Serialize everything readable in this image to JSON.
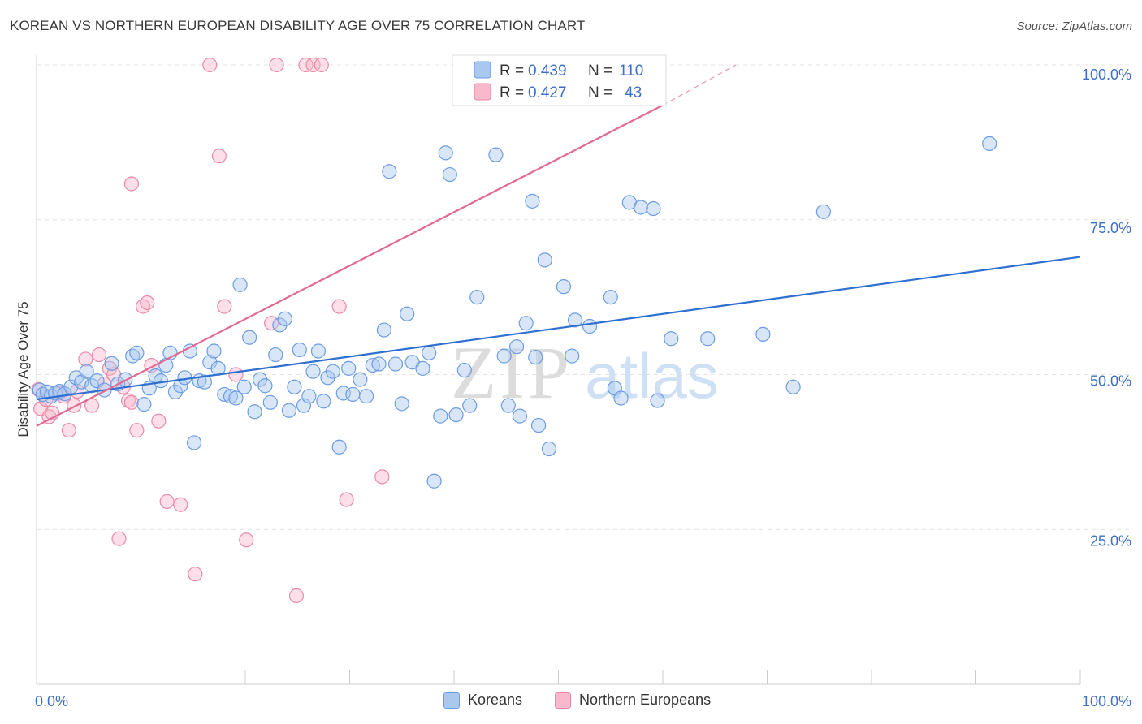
{
  "title": "KOREAN VS NORTHERN EUROPEAN DISABILITY AGE OVER 75 CORRELATION CHART",
  "source": "Source: ZipAtlas.com",
  "watermark": {
    "part1": "ZIP",
    "part2": "atlas"
  },
  "chart_data": {
    "type": "scatter",
    "title": "KOREAN VS NORTHERN EUROPEAN DISABILITY AGE OVER 75 CORRELATION CHART",
    "xlabel": "",
    "ylabel": "Disability Age Over 75",
    "xlim": [
      0,
      100
    ],
    "ylim": [
      0,
      100
    ],
    "x_tick_labels": [
      "0.0%",
      "100.0%"
    ],
    "y_tick_labels": [
      "100.0%",
      "75.0%",
      "50.0%",
      "25.0%"
    ],
    "y_ticks": [
      100,
      75,
      50,
      25
    ],
    "grid": true,
    "legend_placement": "top-center",
    "legend": [
      {
        "label_r": "R =",
        "r": "0.439",
        "label_n": "N =",
        "n": "110",
        "color": "#a9c8f0",
        "stroke": "#6c9de0"
      },
      {
        "label_r": "R =",
        "r": "0.427",
        "label_n": "N =",
        "n": "43",
        "color": "#f8b9cc",
        "stroke": "#e98aa8"
      }
    ],
    "series": [
      {
        "name": "Koreans",
        "fill": "#a9c8f0",
        "stroke": "#6c9de0",
        "line_color": "#2f6fd0",
        "trend": {
          "x0": 0,
          "y0": 46.0,
          "x1": 100,
          "y1": 69.0
        },
        "points": [
          [
            0.3,
            47.5
          ],
          [
            0.6,
            46.8
          ],
          [
            1.0,
            47.2
          ],
          [
            1.4,
            46.5
          ],
          [
            1.8,
            47.0
          ],
          [
            2.2,
            47.3
          ],
          [
            2.7,
            46.9
          ],
          [
            3.3,
            48.0
          ],
          [
            3.8,
            49.5
          ],
          [
            4.3,
            48.8
          ],
          [
            4.8,
            50.5
          ],
          [
            5.3,
            48.2
          ],
          [
            5.8,
            49.0
          ],
          [
            6.5,
            47.5
          ],
          [
            7.2,
            51.8
          ],
          [
            7.8,
            48.5
          ],
          [
            8.5,
            49.2
          ],
          [
            9.2,
            53.0
          ],
          [
            9.6,
            53.5
          ],
          [
            10.3,
            45.2
          ],
          [
            10.8,
            47.8
          ],
          [
            11.4,
            49.8
          ],
          [
            11.9,
            49.0
          ],
          [
            12.4,
            51.5
          ],
          [
            12.8,
            53.5
          ],
          [
            13.3,
            47.2
          ],
          [
            13.8,
            48.2
          ],
          [
            14.2,
            49.5
          ],
          [
            14.7,
            53.8
          ],
          [
            15.1,
            39.0
          ],
          [
            15.6,
            49.0
          ],
          [
            16.1,
            48.8
          ],
          [
            16.6,
            52.0
          ],
          [
            17.0,
            53.8
          ],
          [
            17.4,
            51.0
          ],
          [
            18.0,
            46.8
          ],
          [
            18.6,
            46.5
          ],
          [
            19.1,
            46.2
          ],
          [
            19.5,
            64.5
          ],
          [
            19.9,
            48.0
          ],
          [
            20.4,
            56.0
          ],
          [
            20.9,
            44.0
          ],
          [
            21.4,
            49.2
          ],
          [
            21.9,
            48.2
          ],
          [
            22.4,
            45.5
          ],
          [
            22.9,
            53.2
          ],
          [
            23.3,
            58.0
          ],
          [
            23.8,
            59.0
          ],
          [
            24.2,
            44.2
          ],
          [
            24.7,
            48.0
          ],
          [
            25.2,
            54.0
          ],
          [
            25.6,
            45.0
          ],
          [
            26.1,
            46.5
          ],
          [
            26.5,
            50.5
          ],
          [
            27.0,
            53.8
          ],
          [
            27.5,
            45.7
          ],
          [
            27.9,
            49.5
          ],
          [
            28.4,
            50.5
          ],
          [
            29.0,
            38.3
          ],
          [
            29.4,
            47.0
          ],
          [
            29.9,
            51.0
          ],
          [
            30.3,
            46.8
          ],
          [
            31.0,
            49.2
          ],
          [
            31.6,
            46.5
          ],
          [
            32.2,
            51.5
          ],
          [
            32.8,
            51.7
          ],
          [
            33.3,
            57.2
          ],
          [
            33.8,
            82.8
          ],
          [
            34.4,
            51.7
          ],
          [
            35.0,
            45.3
          ],
          [
            35.5,
            59.8
          ],
          [
            36.0,
            52.0
          ],
          [
            37.0,
            51.0
          ],
          [
            37.6,
            53.5
          ],
          [
            38.1,
            32.8
          ],
          [
            38.7,
            43.3
          ],
          [
            39.2,
            85.8
          ],
          [
            39.6,
            82.3
          ],
          [
            40.2,
            43.5
          ],
          [
            41.0,
            50.7
          ],
          [
            41.5,
            45.0
          ],
          [
            42.2,
            62.5
          ],
          [
            44.0,
            85.5
          ],
          [
            44.8,
            53.0
          ],
          [
            45.2,
            45.0
          ],
          [
            46.0,
            54.5
          ],
          [
            46.3,
            43.3
          ],
          [
            46.9,
            58.3
          ],
          [
            47.5,
            78.0
          ],
          [
            47.8,
            52.8
          ],
          [
            48.1,
            41.8
          ],
          [
            48.7,
            68.5
          ],
          [
            49.1,
            38.0
          ],
          [
            50.5,
            64.2
          ],
          [
            51.3,
            53.0
          ],
          [
            51.6,
            58.8
          ],
          [
            53.0,
            57.8
          ],
          [
            55.0,
            62.5
          ],
          [
            55.4,
            47.8
          ],
          [
            56.0,
            46.2
          ],
          [
            56.8,
            77.8
          ],
          [
            57.9,
            77.0
          ],
          [
            59.1,
            76.8
          ],
          [
            59.5,
            45.8
          ],
          [
            60.8,
            55.8
          ],
          [
            64.3,
            55.8
          ],
          [
            69.6,
            56.5
          ],
          [
            72.5,
            48.0
          ],
          [
            75.4,
            76.3
          ],
          [
            91.3,
            87.3
          ]
        ]
      },
      {
        "name": "Northern Europeans",
        "fill": "#f8b9cc",
        "stroke": "#e98aa8",
        "line_color": "#e06a92",
        "trend": {
          "x0": 0,
          "y0": 41.7,
          "x1": 60,
          "y1": 93.5
        },
        "trend_dashed_to": {
          "x1": 67,
          "y1": 100
        },
        "points": [
          [
            0.2,
            47.6
          ],
          [
            0.4,
            44.5
          ],
          [
            0.9,
            46.0
          ],
          [
            1.2,
            43.2
          ],
          [
            1.5,
            43.8
          ],
          [
            2.2,
            47.0
          ],
          [
            2.6,
            46.5
          ],
          [
            3.1,
            41.0
          ],
          [
            3.6,
            45.0
          ],
          [
            3.9,
            47.3
          ],
          [
            4.7,
            52.5
          ],
          [
            5.3,
            45.0
          ],
          [
            6.0,
            53.2
          ],
          [
            6.5,
            48.5
          ],
          [
            7.0,
            51.0
          ],
          [
            7.4,
            50.0
          ],
          [
            7.9,
            23.5
          ],
          [
            8.3,
            48.0
          ],
          [
            8.8,
            45.8
          ],
          [
            9.1,
            45.5
          ],
          [
            9.1,
            80.8
          ],
          [
            9.6,
            41.0
          ],
          [
            10.2,
            61.0
          ],
          [
            10.6,
            61.6
          ],
          [
            11.0,
            51.5
          ],
          [
            11.7,
            42.5
          ],
          [
            12.5,
            29.5
          ],
          [
            13.8,
            29.0
          ],
          [
            15.2,
            17.8
          ],
          [
            16.6,
            100.0
          ],
          [
            17.5,
            85.3
          ],
          [
            18.0,
            61.0
          ],
          [
            19.1,
            50.0
          ],
          [
            20.1,
            23.3
          ],
          [
            22.5,
            58.3
          ],
          [
            23.0,
            100.0
          ],
          [
            24.9,
            14.3
          ],
          [
            25.8,
            100.0
          ],
          [
            26.5,
            100.0
          ],
          [
            27.3,
            100.0
          ],
          [
            29.0,
            61.0
          ],
          [
            29.7,
            29.8
          ],
          [
            33.1,
            33.5
          ]
        ]
      }
    ]
  },
  "bottom_legend": [
    {
      "label": "Koreans"
    },
    {
      "label": "Northern Europeans"
    }
  ]
}
